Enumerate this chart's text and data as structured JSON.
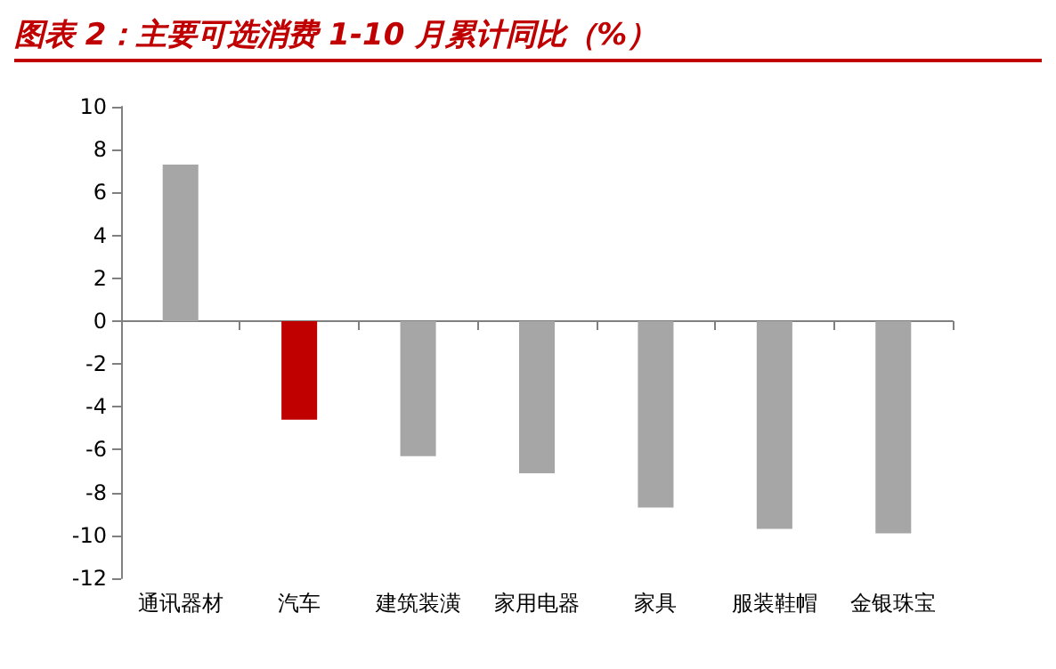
{
  "chart_data": {
    "type": "bar",
    "title": "图表 2：主要可选消费 1-10 月累计同比（%）",
    "categories": [
      "通讯器材",
      "汽车",
      "建筑装潢",
      "家用电器",
      "家具",
      "服装鞋帽",
      "金银珠宝"
    ],
    "values": [
      7.3,
      -4.6,
      -6.3,
      -7.1,
      -8.7,
      -9.7,
      -9.9
    ],
    "colors": [
      "#a6a6a6",
      "#c00000",
      "#a6a6a6",
      "#a6a6a6",
      "#a6a6a6",
      "#a6a6a6",
      "#a6a6a6"
    ],
    "ylim": [
      -12,
      10
    ],
    "yticks": [
      -12,
      -10,
      -8,
      -6,
      -4,
      -2,
      0,
      2,
      4,
      6,
      8,
      10
    ]
  }
}
